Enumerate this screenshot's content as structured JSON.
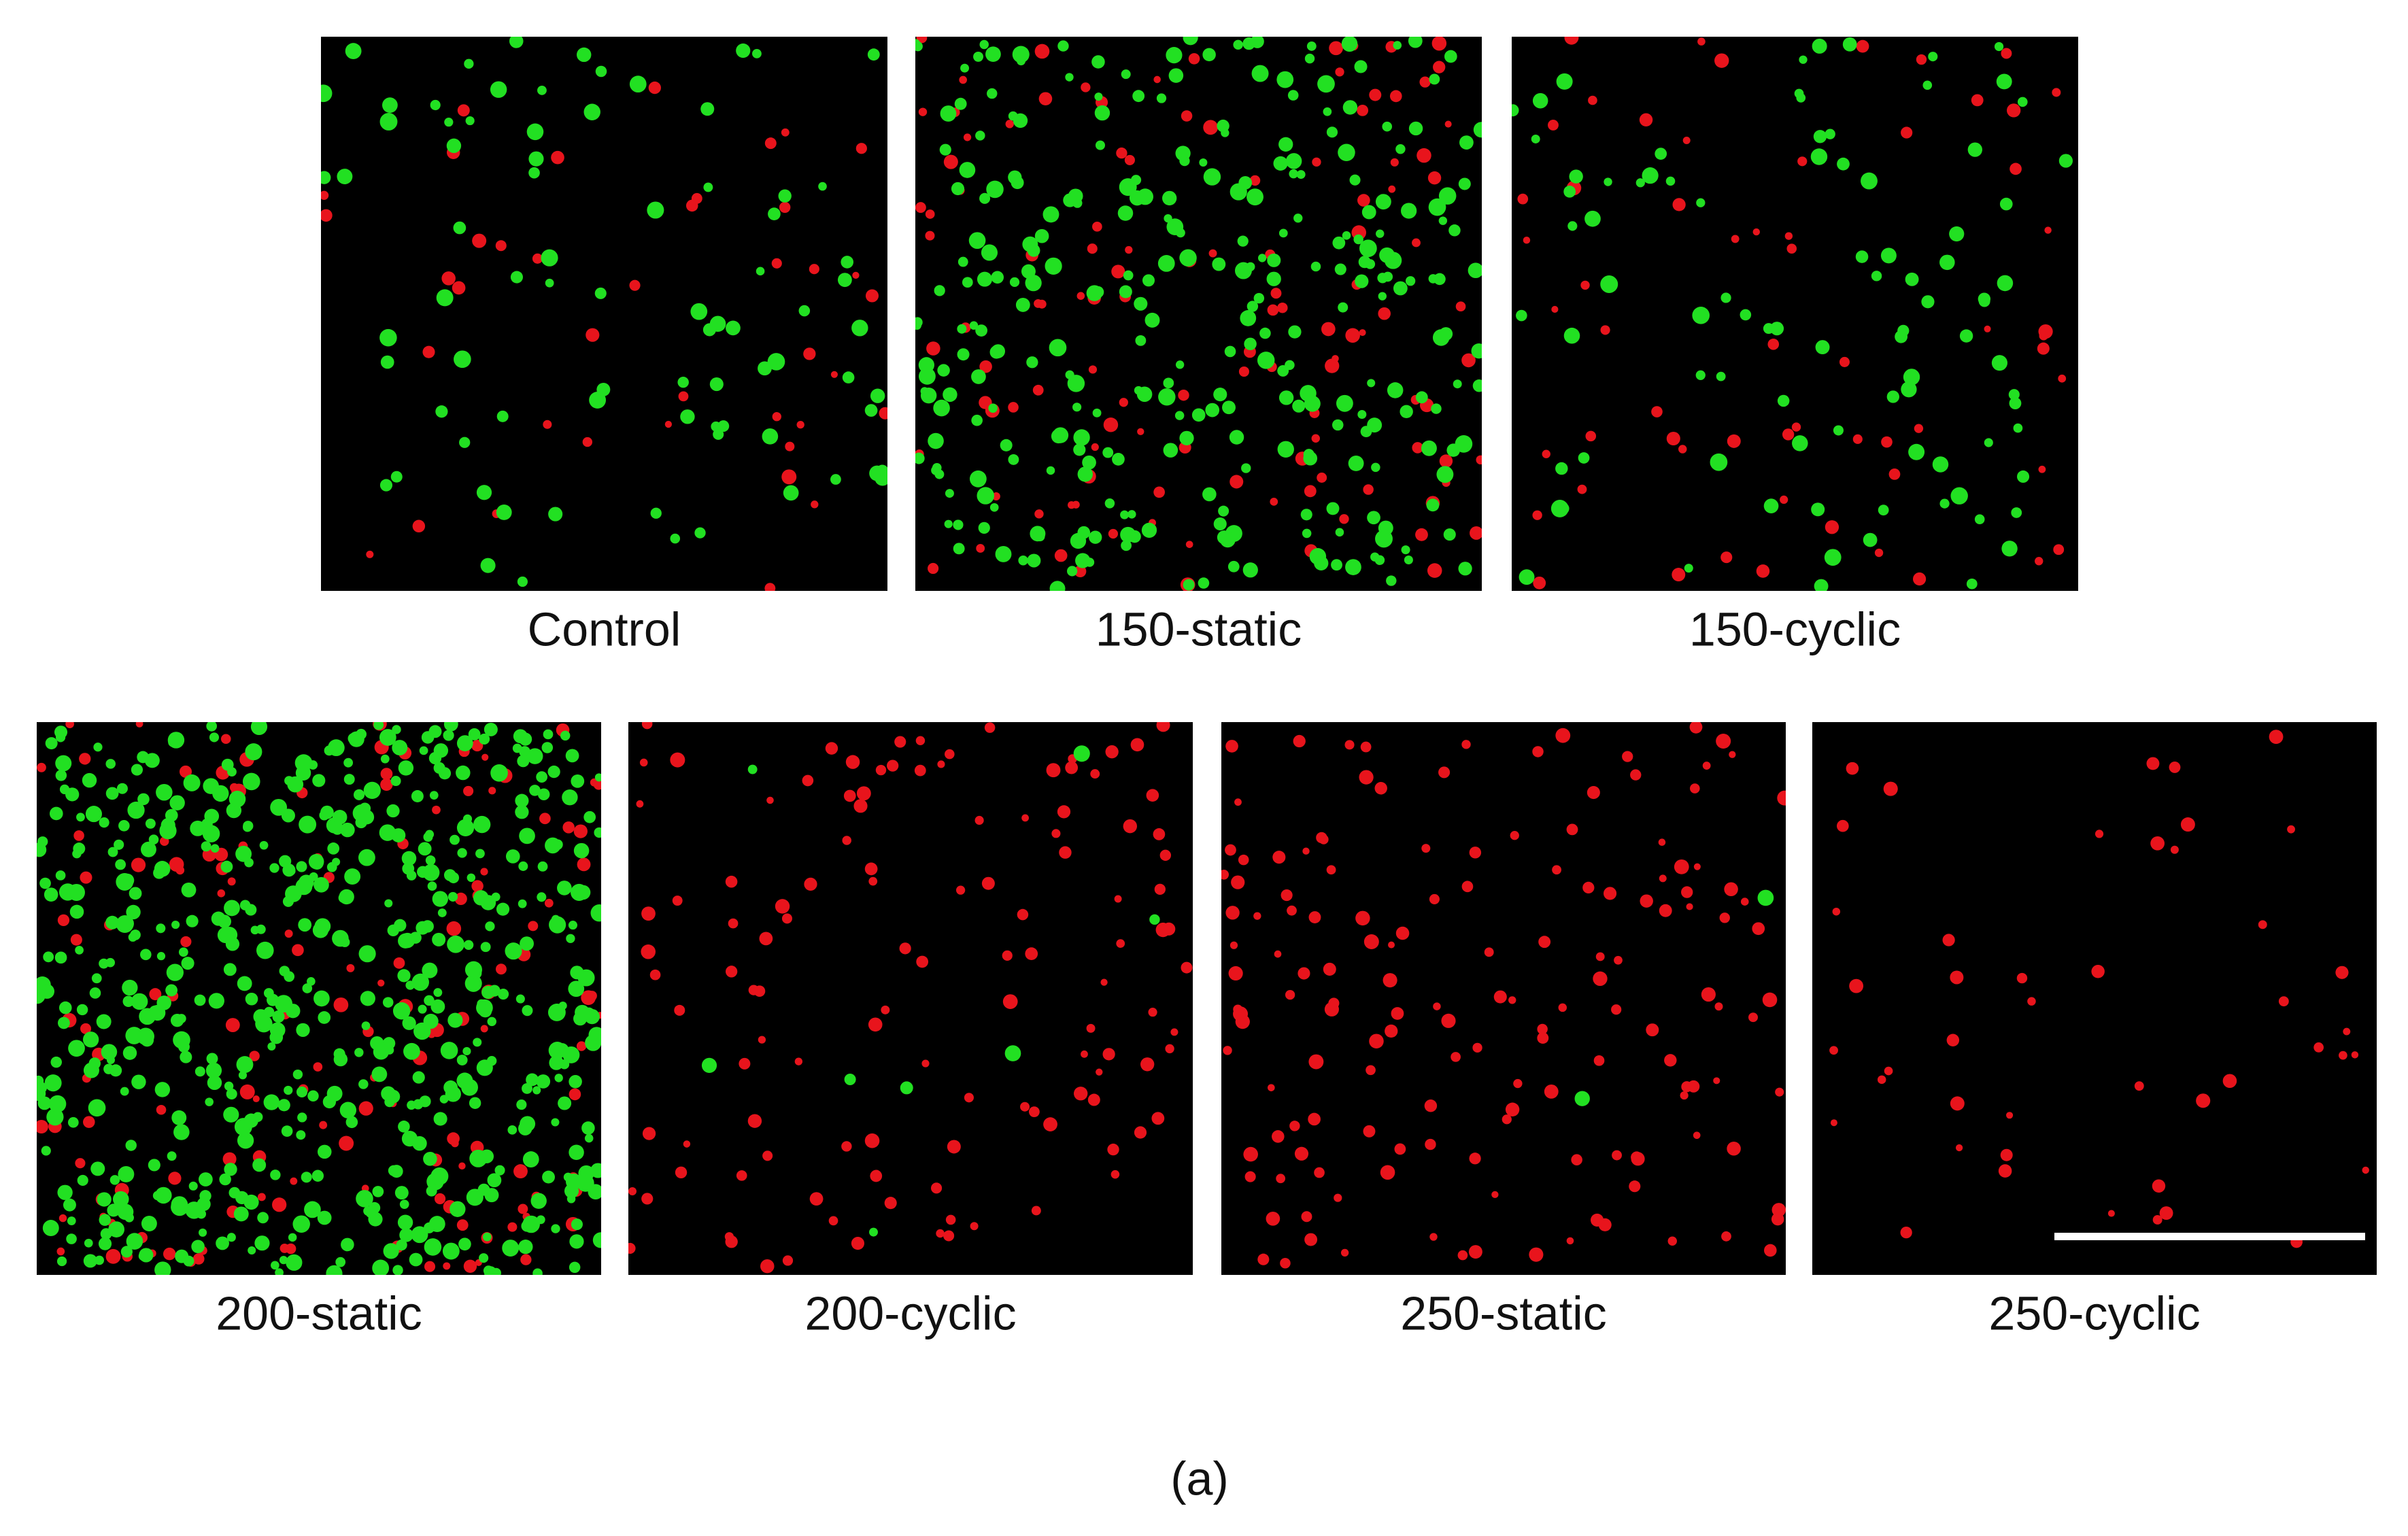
{
  "figure": {
    "panels": [
      {
        "label": "Control"
      },
      {
        "label": "150-static"
      },
      {
        "label": "150-cyclic"
      },
      {
        "label": "200-static"
      },
      {
        "label": "200-cyclic"
      },
      {
        "label": "250-static"
      },
      {
        "label": "250-cyclic"
      }
    ],
    "caption": "(a)"
  }
}
